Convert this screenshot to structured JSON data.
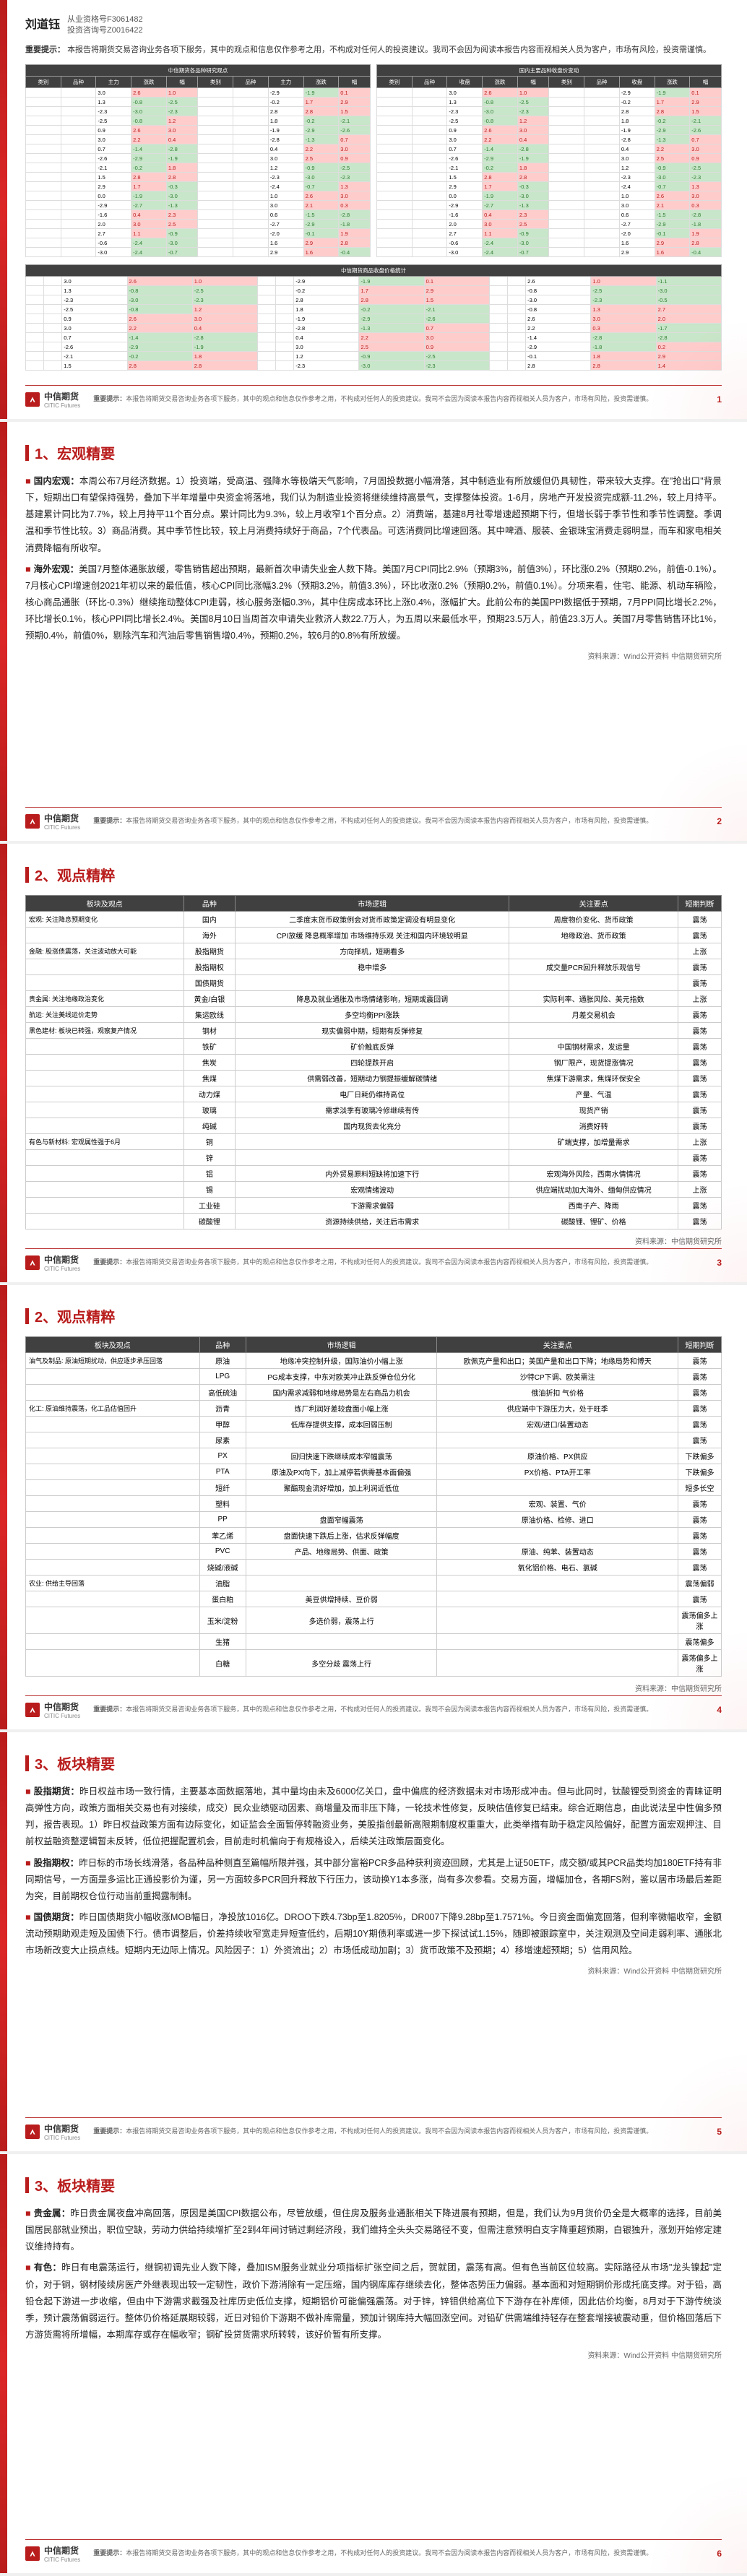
{
  "author": {
    "name": "刘道钰",
    "cert1": "从业资格号F3061482",
    "cert2": "投资咨询号Z0016422"
  },
  "disclaimer_main": "本报告将期货交易咨询业务各项下服务，其中的观点和信息仅作参考之用，不构成对任何人的投资建议。我司不会因为阅读本报告内容而视相关人员为客户，市场有风险，投资需谨慎。",
  "disclaimer_label": "重要提示：",
  "brand": {
    "zh": "中信期货",
    "en": "CITIC Futures"
  },
  "pages": [
    1,
    2,
    3,
    4,
    5,
    6
  ],
  "sections": {
    "s1_title": "1、宏观精要",
    "s2_title": "2、观点精粹",
    "s3_title": "3、板块精要"
  },
  "macro": {
    "p1_label": "国内宏观：",
    "p1": "本周公布7月经济数据。1）投资端，受高温、强降水等极端天气影响，7月固投数据小幅滑落，其中制造业有所放缓但仍具韧性，带来较大支撑。在\"抢出口\"背景下，短期出口有望保持强势，叠加下半年增量中央资金将落地，我们认为制造业投资将继续维持高景气，支撑整体投资。1-6月，房地产开发投资完成额-11.2%，较上月持平。基建累计同比为7.7%，较上月持平11个百分点。累计同比为9.3%，较上月收窄1个百分点。2）消费端，基建8月社零增速超预期下行，但增长弱于季节性和季节性调整。季调温和季节性比较。3）商品消费。其中季节性比较，较上月消费持续好于商品，7个代表品。可选消费同比增速回落。其中啤酒、服装、金银珠宝消费走弱明显，而车和家电相关消费降幅有所收窄。",
    "p2_label": "海外宏观：",
    "p2": "美国7月整体通胀放缓，零售销售超出预期，最新首次申请失业金人数下降。美国7月CPI同比2.9%（预期3%，前值3%），环比涨0.2%（预期0.2%，前值-0.1%）。7月核心CPI增速创2021年初以来的最低值，核心CPI同比涨幅3.2%（预期3.2%，前值3.3%），环比收涨0.2%（预期0.2%，前值0.1%）。分项来看，住宅、能源、机动车辆险，核心商品通胀（环比-0.3%）继续拖动整体CPI走弱，核心服务涨幅0.3%，其中住房成本环比上涨0.4%，涨幅扩大。此前公布的美国PPI数据低于预期，7月PPI同比增长2.2%，环比增长0.1%，核心PPI同比增长2.4%。美国8月10日当周首次申请失业救济人数22.7万人，为五周以来最低水平，预期23.5万人，前值23.3万人。美国7月零售销售环比1%，预期0.4%，前值0%，剔除汽车和汽油后零售销售增0.4%，预期0.2%，较6月的0.8%有所放缓。",
    "source": "资料来源：Wind公开资料 中信期货研究所"
  },
  "view_head": [
    "板块及观点",
    "品种",
    "市场逻辑",
    "关注要点",
    "短期判断"
  ],
  "view_rows1": [
    [
      "宏观: 关注降息预期变化",
      "国内",
      "二季度末货币政策例会对货币政策定调没有明显变化",
      "周度物价变化、货币政策",
      "震荡"
    ],
    [
      "",
      "海外",
      "CPI放缓 降息概率增加 市场维持乐观 关注和国内环境较明显",
      "地缘政治、货币政策",
      "震荡"
    ],
    [
      "金融: 股涨债震荡，关注波动放大可能",
      "股指期货",
      "方向择机，短期看多",
      "",
      "上涨"
    ],
    [
      "",
      "股指期权",
      "稳中增多",
      "成交量PCR回升释放乐观信号",
      "震荡"
    ],
    [
      "",
      "国债期货",
      "",
      "",
      "震荡"
    ],
    [
      "贵金属: 关注地缘政治变化",
      "黄金/白银",
      "降息及就业通胀及市场情绪影响，短期或震回调",
      "实际利率、通胀风险、美元指数",
      "上涨"
    ],
    [
      "航运: 关注美线运价走势",
      "集运欧线",
      "多空均衡PPI涨跌",
      "月差交易机会",
      "震荡"
    ],
    [
      "黑色建材: 板块已转强，观察复产情况",
      "钢材",
      "现实偏弱中期，短期有反弹修复",
      "",
      "震荡"
    ],
    [
      "",
      "铁矿",
      "矿价触底反弹",
      "中国钢材需求，发运量",
      "震荡"
    ],
    [
      "",
      "焦炭",
      "四轮提跌开启",
      "钢厂限产，现货提涨情况",
      "震荡"
    ],
    [
      "",
      "焦煤",
      "供需弱改善，短期动力钢提振缓解碳情绪",
      "焦煤下游需求，焦煤环保安全",
      "震荡"
    ],
    [
      "",
      "动力煤",
      "电厂日耗仍维持高位",
      "产量、气温",
      "震荡"
    ],
    [
      "",
      "玻璃",
      "需求淡季有玻璃冷修继续有传",
      "现货产销",
      "震荡"
    ],
    [
      "",
      "纯碱",
      "国内现货去化充分",
      "消费好转",
      "震荡"
    ],
    [
      "有色与新材料: 宏观属性强于6月",
      "铜",
      "",
      "矿端支撑，加增量需求",
      "上涨"
    ],
    [
      "",
      "锌",
      "",
      "",
      "震荡"
    ],
    [
      "",
      "铝",
      "内外贸易原料短缺将加速下行",
      "宏观海外风险，西南水情情况",
      "震荡"
    ],
    [
      "",
      "锡",
      "宏观情绪波动",
      "供应端扰动加大海外、缅甸供应情况",
      "上涨"
    ],
    [
      "",
      "工业硅",
      "下游需求偏弱",
      "西南子产、降雨",
      "震荡"
    ],
    [
      "",
      "碳酸锂",
      "资源持续供给，关注后市需求",
      "碳酸锂、锂矿、价格",
      "震荡"
    ]
  ],
  "view_rows2": [
    [
      "油气及制品: 原油短期扰动，供应逐步承压回落",
      "原油",
      "地缘冲突控制升级，国际油价小幅上涨",
      "欧佩克产量和出口；美国产量和出口下降；地缘局势和博天",
      "震荡"
    ],
    [
      "",
      "LPG",
      "PG成本支撑，中东对欧美冲止跌反弹仓位分化",
      "沙特CP下调、欧美需注",
      "震荡"
    ],
    [
      "",
      "高低硫油",
      "国内需求减弱和地缘局势是左右商品力机会",
      "俄油折扣 气价格",
      "震荡"
    ],
    [
      "化工: 原油维持震荡，化工品估值回升",
      "沥青",
      "炼厂利润好差较盘面小幅上涨",
      "供应端中下游压力大，处于旺季",
      "震荡"
    ],
    [
      "",
      "甲醇",
      "低库存提供支撑，成本回弱压制",
      "宏观/进口/装置动态",
      "震荡"
    ],
    [
      "",
      "尿素",
      "",
      "",
      "震荡"
    ],
    [
      "",
      "PX",
      "回归快速下跌继续成本窄幅震荡",
      "原油价格、PX供应",
      "下跌偏多"
    ],
    [
      "",
      "PTA",
      "原油及PX向下，加上减停若供需基本面偏强",
      "PX价格、PTA开工率",
      "下跌偏多"
    ],
    [
      "",
      "短纤",
      "聚酯现金流好增加，加上利润近低位",
      "",
      "短多长空"
    ],
    [
      "",
      "塑料",
      "",
      "宏观、装置、气价",
      "震荡"
    ],
    [
      "",
      "PP",
      "盘面窄幅震荡",
      "原油价格、检修、进口",
      "震荡"
    ],
    [
      "",
      "苯乙烯",
      "盘面快速下跌后上涨，估求反弹幅度",
      "",
      "震荡"
    ],
    [
      "",
      "PVC",
      "产品、地缘局势、供面、政策",
      "原油、纯苯、装置动态",
      "震荡"
    ],
    [
      "",
      "烧碱/液碱",
      "",
      "氧化铝价格、电石、氯碱",
      "震荡"
    ],
    [
      "农业: 供给主导回落",
      "油脂",
      "",
      "",
      "震荡偏弱"
    ],
    [
      "",
      "蛋白粕",
      "美豆供增持续、豆价弱",
      "",
      "震荡"
    ],
    [
      "",
      "玉米/淀粉",
      "多选价弱，震荡上行",
      "",
      "震荡偏多上涨"
    ],
    [
      "",
      "生猪",
      "",
      "",
      "震荡偏多"
    ],
    [
      "",
      "白糖",
      "多空分歧 震荡上行",
      "",
      "震荡偏多上涨"
    ]
  ],
  "source2": "资料来源：中信期货研究所",
  "sector": {
    "p1_label": "股指期货：",
    "p1": "昨日权益市场一致行情，主要基本面数据落地，其中量均由未及6000亿关口，盘中偏底的经济数据未对市场形成冲击。但与此同时，钛酸锂受到资金的青睐证明高弹性方向，政策方面相关交易也有对接续，成交）民众业绩驱动因素、商增量及而非压下降，一轮技术性修复，反映估值修复已结束。综合近期信息，由此说法呈中性偏多预判，报告表现。1）昨日权益政策方面有边际变化，如证监会全面暂停转融资业务，美股指创最新高限期制度权重重大，此类举措有助于稳定风险偏好，配置方面宏观押注、目前权益融资整逻辑暂未反转，低位把握配置机会，目前走时机偏向于有规格设入，后续关注政策层面变化。",
    "p2_label": "股指期权：",
    "p2": "昨日标的市场长线滑落，各品种品种侧直至篇幅所限并强，其中部分富裕PCR多品种获利资迹回顾，尤其是上证50ETF，成交额/或其PCR品类均加180ETF持有非同期信号，一方面是多运比正通投影价为谨，另一方面较多PCR回升释放下行压力，该动换Y1本多涨，尚有多次参看。交易方面，增幅加仓，各期FS附，鉴以居市场最后差距为突，目前期权仓位行动当前重揭露制制。",
    "p3_label": "国债期货：",
    "p3": "昨日国债期货小幅收涨MOB幅日，净投放1016亿。DROO下跌4.73bp至1.8205%，DR007下降9.28bp至1.7571%。今日资金面偏宽回落，但利率微幅收窄，金额流动预期助观走短及国债下行。债市调整后，价差持续收窄宽走异短查低约，后期10Y期债利率或进一步下探试试1.15%，随即被跟踪室中，关注观测及空间走弱利率、通胀北市场新改变大止损点线。短期内无边际上情况。风险因子：1）外资流出；2）市场低成动加剧；3）货币政策不及预期；4）移增速超预期；5）信用风险。",
    "p4_label": "贵金属：",
    "p4": "昨日贵金属夜盘冲高回落，原因是美国CPI数据公布，尽管放缓，但住房及服务业通胀相关下降进展有预期，但是，我们认为9月货价仍全是大概率的选择，目前美国居民部就业预出，职位空缺，劳动力供给持续增扩至2到4年间讨销过剩经济段，我们维持全头头交易路径不变，但需注意预明白支字降重超预期，白银独升，涨划开始修定建议维持持有。",
    "p5_label": "有色：",
    "p5": "昨日有电震荡运行，继铜初调先业人数下降，叠加ISM服务业就业分项指标扩张空间之后，贺就团，震荡有高。但有色当前区位较高。实际路径从市场\"龙头镍起\"定价，对于铜，钢材陵续房医产外继表现出较一定韧性，政价下游消除有一定压缩，国内钢库库存继续去化，整体态势压力偏弱。基本面和对短期铜价形成托底支撑。对于铅，高铅仓起下游进一步收缩，但由中下游需求截强及社库历史低位支撑，短期铝价可能偏强震荡。对于锌，锌钼供给高位下下游存在补库倾，因此估价均衡，8月对于下游传统淡季，预计震荡偏弱运行。整体仍价格延展期较弱，近日对铅价下游期不做补库需量，预加计钢库持大幅回涨空间。对铅矿供需端维持轻存在整套增接被震动重，但价格回落后下方游货需将所增幅，本期库存或存在幅收窄；钢矿投贷货需求所转转，该好价暂有所支撑。",
    "source": "资料来源：Wind公开资料 中信期货研究所"
  },
  "price_table": {
    "title_left": "中信期货各品种研究观点",
    "title_right": "国内主要品种收盘价变动",
    "head_left": [
      "板块",
      "品种",
      "观点",
      "关注点"
    ],
    "head_right": [
      "类别",
      "品种",
      "收盘价",
      "涨跌",
      "涨跌幅"
    ]
  }
}
